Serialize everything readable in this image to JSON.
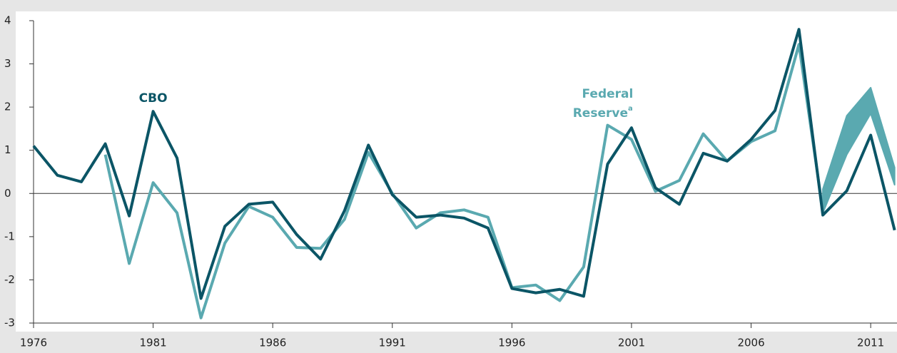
{
  "chart_data": {
    "type": "line",
    "x": [
      1976,
      1977,
      1978,
      1979,
      1980,
      1981,
      1982,
      1983,
      1984,
      1985,
      1986,
      1987,
      1988,
      1989,
      1990,
      1991,
      1992,
      1993,
      1994,
      1995,
      1996,
      1997,
      1998,
      1999,
      2000,
      2001,
      2002,
      2003,
      2004,
      2005,
      2006,
      2007,
      2008,
      2009,
      2010,
      2011,
      2012
    ],
    "series": [
      {
        "name": "CBO",
        "color": "#0b5566",
        "values": [
          1.1,
          0.42,
          0.27,
          1.15,
          -0.52,
          1.9,
          0.82,
          -2.43,
          -0.76,
          -0.25,
          -0.2,
          -0.95,
          -1.52,
          -0.4,
          1.12,
          -0.03,
          -0.55,
          -0.5,
          -0.57,
          -0.8,
          -2.2,
          -2.3,
          -2.22,
          -2.38,
          0.68,
          1.52,
          0.13,
          -0.25,
          0.93,
          0.75,
          1.25,
          1.92,
          3.8,
          -0.5,
          0.06,
          1.35,
          -0.85
        ]
      },
      {
        "name": "Federal Reserve",
        "color": "#5aa9b0",
        "values": [
          null,
          null,
          null,
          0.9,
          -1.62,
          0.25,
          -0.45,
          -2.88,
          -1.15,
          -0.3,
          -0.55,
          -1.25,
          -1.27,
          -0.6,
          0.95,
          0.0,
          -0.8,
          -0.45,
          -0.38,
          -0.55,
          -2.18,
          -2.12,
          -2.48,
          -1.7,
          1.58,
          1.25,
          0.05,
          0.3,
          1.38,
          0.75,
          1.2,
          1.45,
          3.45,
          -0.4,
          null,
          null,
          null
        ]
      }
    ],
    "band": {
      "color": "#5aa9b0",
      "x": [
        2009,
        2010,
        2011,
        2012
      ],
      "low": [
        -0.45,
        0.9,
        1.85,
        0.2
      ],
      "high": [
        0.1,
        1.8,
        2.45,
        0.6
      ]
    },
    "annotations": [
      {
        "text": "CBO",
        "x": 1981,
        "y": 2.2,
        "color": "#0b5566"
      },
      {
        "text": "Federal",
        "x": 2000,
        "y": 2.3,
        "color": "#5aa9b0"
      },
      {
        "text": "Reserve",
        "x": 1999.8,
        "y": 1.85,
        "color": "#5aa9b0",
        "sup": "a"
      }
    ],
    "xlim": [
      1976,
      2012.1
    ],
    "xticks": [
      1976,
      1981,
      1986,
      1991,
      1996,
      2001,
      2006,
      2011
    ],
    "ylim": [
      -3,
      4
    ],
    "yticks": [
      -3,
      -2,
      -1,
      0,
      1,
      2,
      3,
      4
    ]
  }
}
